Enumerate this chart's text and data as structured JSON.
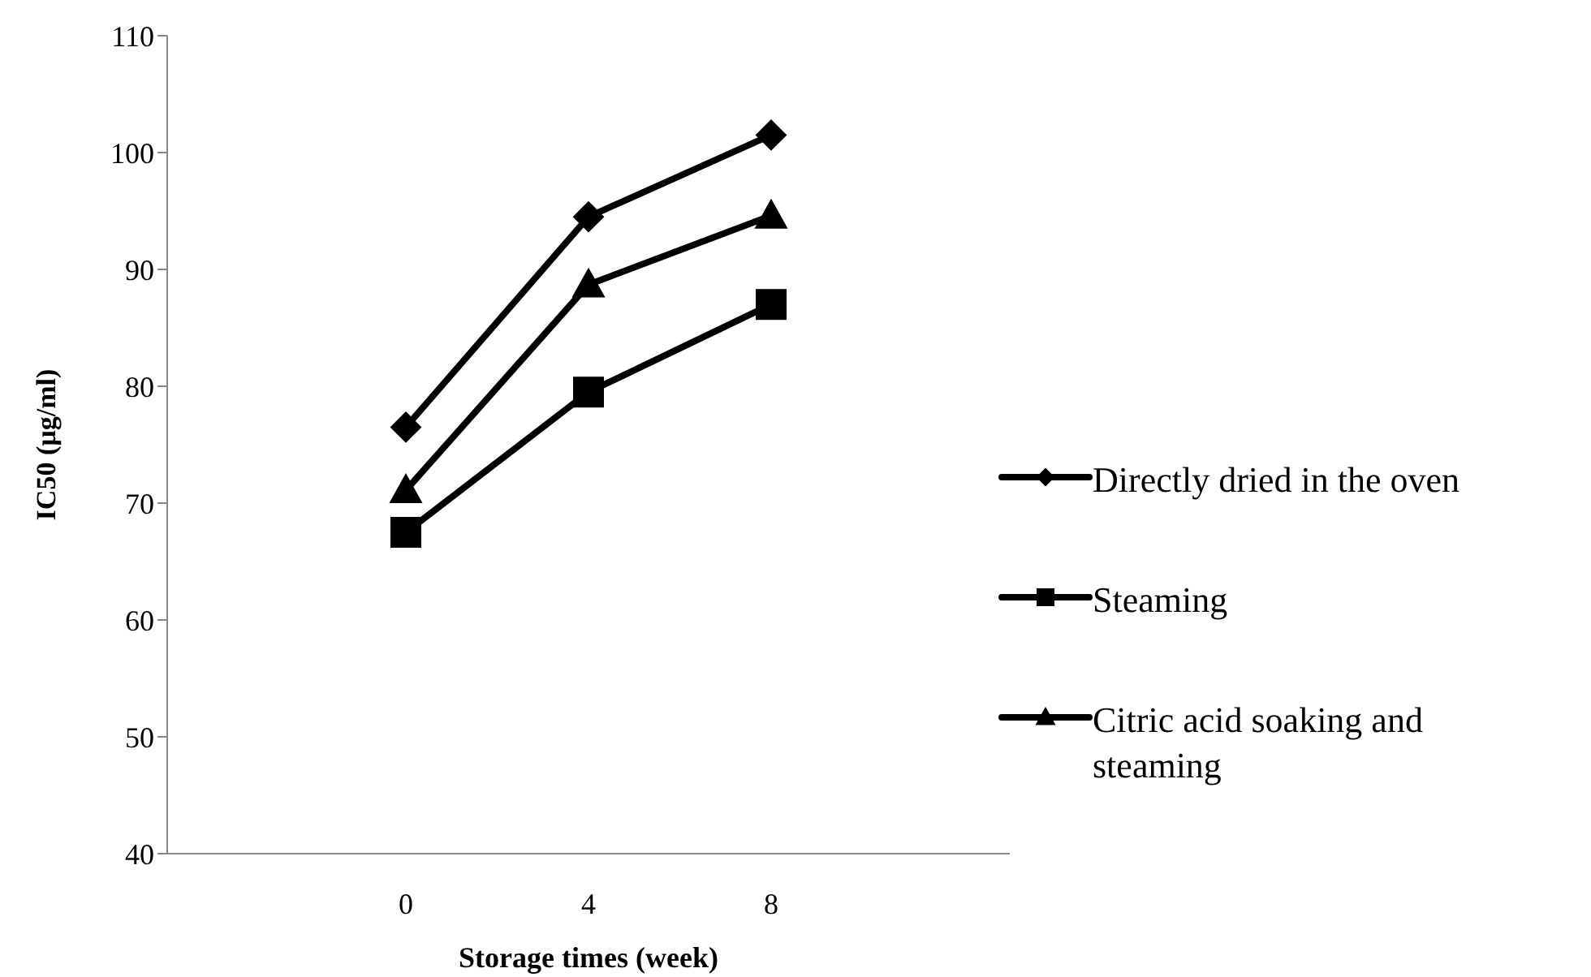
{
  "chart_data": {
    "type": "line",
    "xlabel": "Storage times (week)",
    "ylabel": "IC50 (µg/ml)",
    "categories": [
      "0",
      "4",
      "8"
    ],
    "series": [
      {
        "name": "Directly dried in the oven",
        "color": "#000000",
        "marker": "diamond",
        "values": [
          76.5,
          94.5,
          101.5
        ]
      },
      {
        "name": "Steaming",
        "color": "#000000",
        "marker": "square",
        "values": [
          67.5,
          79.5,
          87
        ]
      },
      {
        "name": "Citric acid soaking and steaming",
        "color": "#000000",
        "marker": "triangle",
        "values": [
          71.1,
          88.7,
          94.6
        ]
      }
    ],
    "ylim": [
      40,
      110
    ],
    "yticks": [
      40,
      50,
      60,
      70,
      80,
      90,
      100,
      110
    ],
    "grid": false,
    "legend": "right",
    "line_style": "solid"
  }
}
